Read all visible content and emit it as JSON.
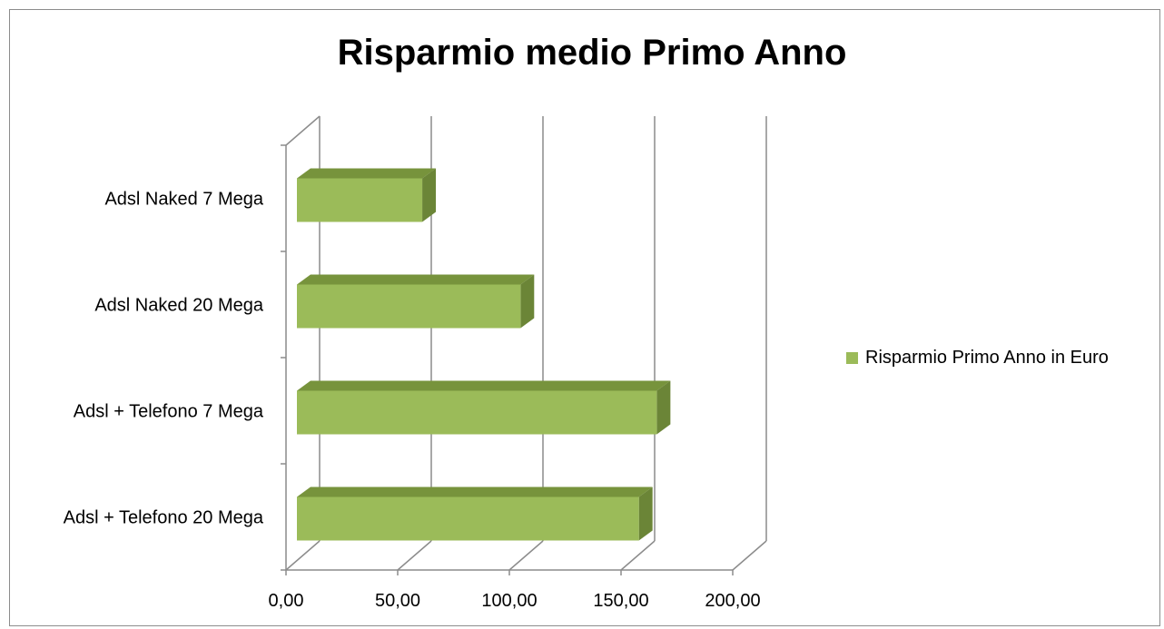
{
  "chart_data": {
    "type": "bar",
    "orientation": "horizontal",
    "style": "3d",
    "title": "Risparmio medio Primo Anno",
    "xlabel": "",
    "ylabel": "",
    "categories": [
      "Adsl Naked 7 Mega",
      "Adsl Naked 20 Mega",
      "Adsl + Telefono 7 Mega",
      "Adsl + Telefono 20 Mega"
    ],
    "series": [
      {
        "name": "Risparmio Primo Anno in Euro",
        "values": [
          61,
          105,
          166,
          158
        ]
      }
    ],
    "xlim": [
      0,
      200
    ],
    "x_ticks": [
      "0,00",
      "50,00",
      "100,00",
      "150,00",
      "200,00"
    ],
    "grid": true,
    "legend_position": "right",
    "colors": {
      "bar_front": "#9bbb59",
      "bar_top": "#77933c",
      "bar_side": "#6b8537",
      "grid": "#8c8c8c",
      "frame": "#8c8c8c"
    }
  }
}
